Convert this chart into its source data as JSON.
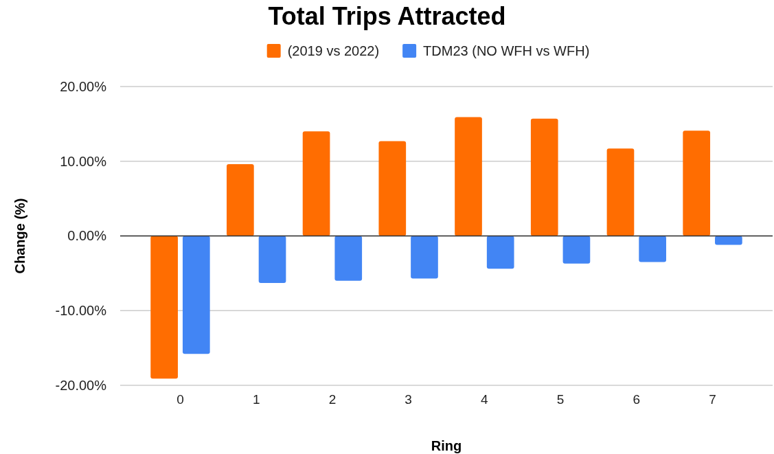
{
  "chart_data": {
    "type": "bar",
    "title": "Total Trips Attracted",
    "xlabel": "Ring",
    "ylabel": "Change (%)",
    "categories": [
      "0",
      "1",
      "2",
      "3",
      "4",
      "5",
      "6",
      "7"
    ],
    "series": [
      {
        "name": "(2019 vs 2022)",
        "color": "#ff6d01",
        "values": [
          -19.1,
          9.6,
          14.0,
          12.7,
          15.9,
          15.7,
          11.7,
          14.1
        ]
      },
      {
        "name": "TDM23 (NO WFH vs WFH)",
        "color": "#4285f4",
        "values": [
          -15.8,
          -6.3,
          -6.0,
          -5.7,
          -4.4,
          -3.7,
          -3.5,
          -1.2
        ]
      }
    ],
    "ylim": [
      -20,
      20
    ],
    "yticks": [
      {
        "value": -20,
        "label": "-20.00%"
      },
      {
        "value": -10,
        "label": "-10.00%"
      },
      {
        "value": 0,
        "label": "0.00%"
      },
      {
        "value": 10,
        "label": "10.00%"
      },
      {
        "value": 20,
        "label": "20.00%"
      }
    ],
    "grid": "y",
    "legend": "top"
  }
}
